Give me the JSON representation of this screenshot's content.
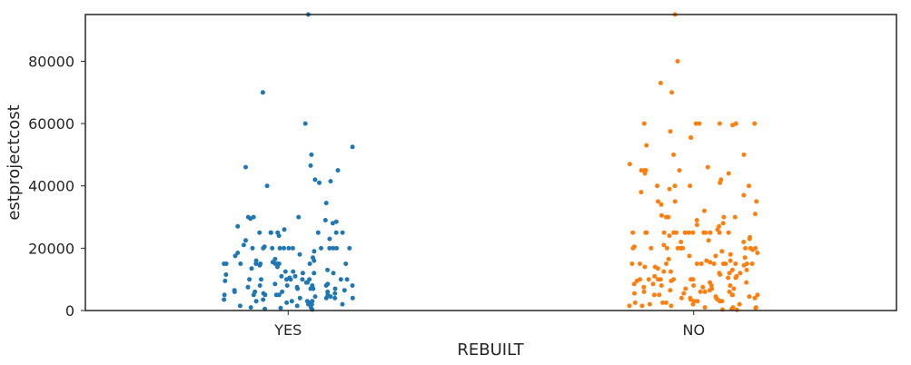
{
  "chart_data": {
    "type": "scatter",
    "style": "strip",
    "title": "",
    "xlabel": "REBUILT",
    "ylabel": "estprojectcost",
    "categories": [
      "YES",
      "NO"
    ],
    "colors": [
      "#1f77b4",
      "#ff7f0e"
    ],
    "ylim": [
      0,
      95000
    ],
    "yticks": [
      0,
      20000,
      40000,
      60000,
      80000
    ],
    "ytick_labels": [
      "0",
      "20000",
      "40000",
      "60000",
      "80000"
    ],
    "grid": false,
    "legend": "none",
    "series": [
      {
        "category": "YES",
        "color": "#1f77b4",
        "values": [
          95000,
          70000,
          60000,
          52500,
          50000,
          46500,
          46000,
          45000,
          42000,
          41500,
          41000,
          40000,
          34500,
          30000,
          30000,
          30000,
          29500,
          29000,
          28500,
          28000,
          27000,
          26000,
          25000,
          25000,
          25000,
          25000,
          25000,
          25000,
          25000,
          24000,
          23000,
          22500,
          21000,
          20500,
          20000,
          20000,
          20000,
          20000,
          20000,
          20000,
          20000,
          20000,
          20000,
          20000,
          20000,
          20000,
          19000,
          18500,
          18000,
          17500,
          17000,
          16500,
          16000,
          16000,
          15500,
          15000,
          15000,
          15000,
          15000,
          15000,
          15000,
          15000,
          15000,
          15000,
          15000,
          14500,
          14000,
          13500,
          13000,
          12500,
          12500,
          12000,
          12000,
          12000,
          11500,
          11000,
          11000,
          10500,
          10000,
          10000,
          10000,
          10000,
          10000,
          10000,
          10000,
          10000,
          9500,
          9000,
          9000,
          8500,
          8500,
          8000,
          8000,
          8000,
          8000,
          8000,
          7500,
          7500,
          7000,
          7000,
          7000,
          7000,
          6500,
          6500,
          6000,
          6000,
          6000,
          6000,
          5500,
          5500,
          5000,
          5000,
          5000,
          5000,
          5000,
          5000,
          4500,
          4500,
          4000,
          4000,
          4000,
          4000,
          3500,
          3500,
          3000,
          3000,
          3000,
          3000,
          2500,
          2500,
          2000,
          2000,
          2000,
          1500,
          1500,
          1000,
          1000,
          800,
          500,
          300
        ]
      },
      {
        "category": "NO",
        "color": "#ff7f0e",
        "values": [
          95000,
          80000,
          73000,
          70000,
          60000,
          60000,
          60000,
          60000,
          60000,
          60000,
          59500,
          57500,
          55500,
          55500,
          53000,
          50000,
          50000,
          47000,
          46000,
          45000,
          45000,
          45000,
          45000,
          44000,
          44000,
          42000,
          41000,
          40000,
          40000,
          40000,
          40000,
          39000,
          38000,
          37000,
          35000,
          35000,
          35000,
          34000,
          32000,
          31000,
          30500,
          30000,
          30000,
          30000,
          30000,
          29000,
          28000,
          27500,
          27000,
          26000,
          25000,
          25000,
          25000,
          25000,
          25000,
          25000,
          25000,
          25000,
          25000,
          25000,
          25000,
          25000,
          25000,
          25000,
          25000,
          24000,
          23500,
          23000,
          22500,
          22000,
          22000,
          21000,
          20500,
          20000,
          20000,
          20000,
          20000,
          20000,
          20000,
          20000,
          20000,
          20000,
          20000,
          19500,
          19000,
          18500,
          18000,
          17500,
          17500,
          17000,
          16500,
          16000,
          16000,
          15500,
          15000,
          15000,
          15000,
          15000,
          15000,
          15000,
          15000,
          15000,
          15000,
          15000,
          15000,
          14500,
          14000,
          14000,
          13500,
          13000,
          13000,
          12500,
          12500,
          12000,
          12000,
          12000,
          11500,
          11000,
          11000,
          10500,
          10500,
          10000,
          10000,
          10000,
          10000,
          10000,
          10000,
          10000,
          9500,
          9500,
          9000,
          9000,
          8500,
          8500,
          8000,
          8000,
          8000,
          8000,
          7500,
          7500,
          7000,
          7000,
          7000,
          6500,
          6500,
          6000,
          6000,
          6000,
          6000,
          5500,
          5500,
          5000,
          5000,
          5000,
          5000,
          5000,
          4500,
          4500,
          4000,
          4000,
          4000,
          4000,
          3500,
          3500,
          3000,
          3000,
          3000,
          3000,
          2500,
          2500,
          2500,
          2000,
          2000,
          2000,
          1500,
          1500,
          1500,
          1000,
          1000,
          1000,
          800,
          500,
          300,
          200
        ]
      }
    ]
  }
}
